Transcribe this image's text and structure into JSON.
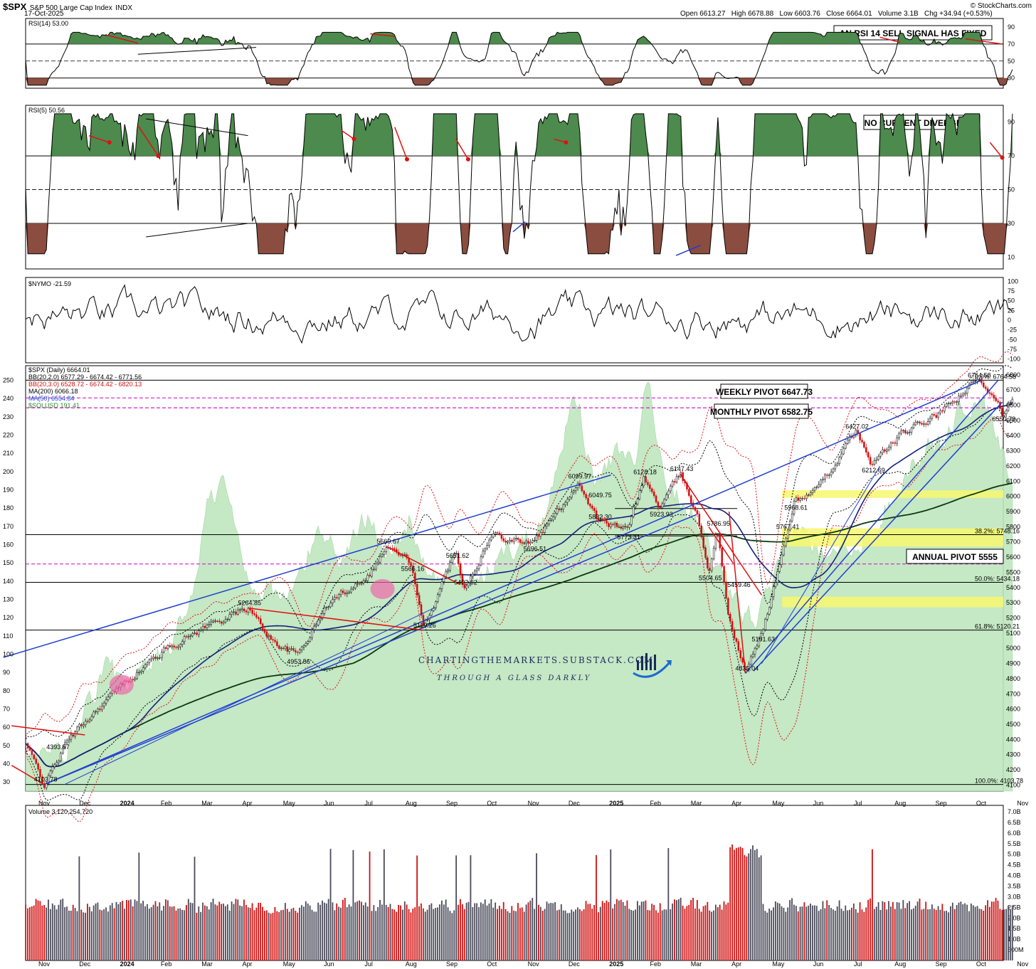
{
  "header": {
    "symbol": "$SPX",
    "name": "S&P 500 Large Cap Index",
    "exchange": "INDX",
    "date": "17-Oct-2025",
    "ohlc": "Open 6613.27   High 6678.88   Low 6603.76   Close 6664.01   Volume 3.1B   Chg +34.94 (+0.53%)",
    "brand": "© StockCharts.com"
  },
  "chart_data": {
    "type": "line",
    "panels": {
      "rsi14": {
        "label": "RSI(14) 53.00",
        "ticks": [
          90,
          70,
          50,
          30
        ],
        "ylim": [
          18,
          100
        ],
        "annotation": "AN RSI 14 SELL SIGNAL HAS FIXED"
      },
      "rsi5": {
        "label": "RSI(5) 50.56",
        "ticks": [
          90,
          70,
          50,
          30,
          10
        ],
        "ylim": [
          3,
          100
        ],
        "annotation": "NO CURRENT DIVERGENCE"
      },
      "nymo": {
        "label": "$NYMO -21.59",
        "ticks": [
          100,
          75,
          50,
          25,
          0,
          -25,
          -50,
          -75,
          -100
        ],
        "ylim": [
          -110,
          110
        ]
      },
      "price": {
        "legend": [
          "$SPX (Daily) 6664.01",
          "BB(20,2.0) 6577.29 - 6674.42 - 6771.56",
          "BB(20,3.0) 6528.72 - 6674.42 - 6820.13",
          "MA(200) 6066.18",
          "MA(50) 6554.84",
          "$SOLUSD 191.41"
        ],
        "right_ticks": [
          6800,
          6700,
          6600,
          6500,
          6400,
          6300,
          6200,
          6100,
          6000,
          5900,
          5800,
          5700,
          5600,
          5500,
          5400,
          5300,
          5200,
          5100,
          5000,
          4900,
          4800,
          4700,
          4600,
          4500,
          4400,
          4300,
          4200,
          4100
        ],
        "left_ticks": [
          250,
          240,
          230,
          220,
          210,
          200,
          190,
          180,
          170,
          160,
          150,
          140,
          130,
          120,
          110,
          100,
          90,
          80,
          70,
          60,
          50,
          40,
          30
        ],
        "right_ylim": [
          4060,
          6860
        ],
        "left_ylim": [
          25,
          258
        ],
        "swing_points": [
          {
            "x": 0,
            "y": 4103.78,
            "label": "4103.78"
          },
          {
            "x": 0.3,
            "y": 4393.57,
            "label": "4393.57"
          },
          {
            "x": 5,
            "y": 5264.85,
            "label": "5264.85"
          },
          {
            "x": 6.2,
            "y": 4953.56,
            "label": "4953.56"
          },
          {
            "x": 8.4,
            "y": 5669.67,
            "label": "5669.67"
          },
          {
            "x": 9,
            "y": 5566.16,
            "label": "5566.16"
          },
          {
            "x": 9.3,
            "y": 5119.26,
            "label": "5119.26"
          },
          {
            "x": 10.1,
            "y": 5651.62,
            "label": "5651.62"
          },
          {
            "x": 10.3,
            "y": 5402.62,
            "label": "5402.62"
          },
          {
            "x": 12,
            "y": 5696.51,
            "label": "5696.51"
          },
          {
            "x": 13.1,
            "y": 6099.97,
            "label": "6099.97"
          },
          {
            "x": 13.6,
            "y": 6049.75,
            "label": "6049.75"
          },
          {
            "x": 13.6,
            "y": 5832.3,
            "label": "5832.30"
          },
          {
            "x": 14.3,
            "y": 5773.31,
            "label": "5773.31"
          },
          {
            "x": 14.7,
            "y": 6128.18,
            "label": "6128.18"
          },
          {
            "x": 15.1,
            "y": 5923.93,
            "label": "5923.93"
          },
          {
            "x": 15.6,
            "y": 6147.43,
            "label": "6147.43"
          },
          {
            "x": 16.5,
            "y": 5786.95,
            "label": "5786.95"
          },
          {
            "x": 16.3,
            "y": 5504.65,
            "label": "5504.65"
          },
          {
            "x": 17,
            "y": 5459.46,
            "label": "5459.46"
          },
          {
            "x": 17.2,
            "y": 4835.04,
            "label": "4835.04"
          },
          {
            "x": 17.6,
            "y": 5101.63,
            "label": "5101.63"
          },
          {
            "x": 18.2,
            "y": 5767.41,
            "label": "5767.41"
          },
          {
            "x": 18.4,
            "y": 5968.61,
            "label": "5968.61"
          },
          {
            "x": 19.9,
            "y": 6427.02,
            "label": "6427.02"
          },
          {
            "x": 20.3,
            "y": 6212.69,
            "label": "6212.69"
          },
          {
            "x": 22.9,
            "y": 6764.58,
            "label": "6764.58"
          },
          {
            "x": 23.5,
            "y": 6550.78,
            "label": "6550.78"
          }
        ],
        "fib_levels": [
          {
            "y": 6764.58,
            "label": "0.0%: 6764.58"
          },
          {
            "y": 5748.16,
            "label": "38.2%: 5748.16"
          },
          {
            "y": 5434.18,
            "label": "50.0%: 5434.18"
          },
          {
            "y": 5120.21,
            "label": "61.8%: 5120.21"
          },
          {
            "y": 4103.78,
            "label": "100.0%: 4103.78"
          }
        ],
        "pivots": [
          {
            "y": 6647.73,
            "label": "WEEKLY PIVOT 6647.73"
          },
          {
            "y": 6582.75,
            "label": "MONTHLY PIVOT 6582.75"
          },
          {
            "y": 5555,
            "label": "ANNUAL PIVOT 5555"
          }
        ]
      },
      "volume": {
        "label": "Volume 3,120,254,720",
        "ticks": [
          "7.0B",
          "6.5B",
          "6.0B",
          "5.5B",
          "5.0B",
          "4.5B",
          "4.0B",
          "3.5B",
          "3.0B",
          "2.5B",
          "2.0B",
          "1.5B",
          "1.0B",
          "500M"
        ],
        "ylim": [
          0,
          7.3
        ]
      }
    },
    "x_months": [
      "Nov",
      "Dec",
      "2024",
      "Feb",
      "Mar",
      "Apr",
      "May",
      "Jun",
      "Jul",
      "Aug",
      "Sep",
      "Oct",
      "Nov",
      "Dec",
      "2025",
      "Feb",
      "Mar",
      "Apr",
      "May",
      "Jun",
      "Jul",
      "Aug",
      "Sep",
      "Oct",
      "Nov"
    ]
  },
  "watermark": {
    "line1": "CHARTINGTHEMARKETS.SUBSTACK.COM",
    "line2": "THROUGH A GLASS DARKLY"
  },
  "colors": {
    "green_fill": "#7fcf7f",
    "red_fill": "#e06060",
    "trend_blue": "#1f3fd0",
    "trend_red": "#e01010",
    "pivot_magenta": "#d020d0",
    "highlight_yellow": "#f5f56a"
  }
}
